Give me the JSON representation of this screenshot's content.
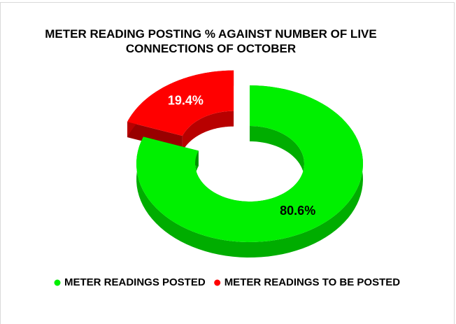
{
  "chart_data": {
    "type": "donut",
    "title": "METER READING POSTING % AGAINST NUMBER OF LIVE CONNECTIONS OF OCTOBER",
    "categories": [
      "METER READINGS POSTED",
      "METER READINGS TO BE POSTED"
    ],
    "values": [
      80.6,
      19.4
    ],
    "value_labels": [
      "80.6%",
      "19.4%"
    ],
    "colors": [
      "#00f000",
      "#ff0000"
    ],
    "label_colors": [
      "#000000",
      "#ffffff"
    ],
    "exploded": [
      false,
      true
    ],
    "legend": "bottom"
  }
}
